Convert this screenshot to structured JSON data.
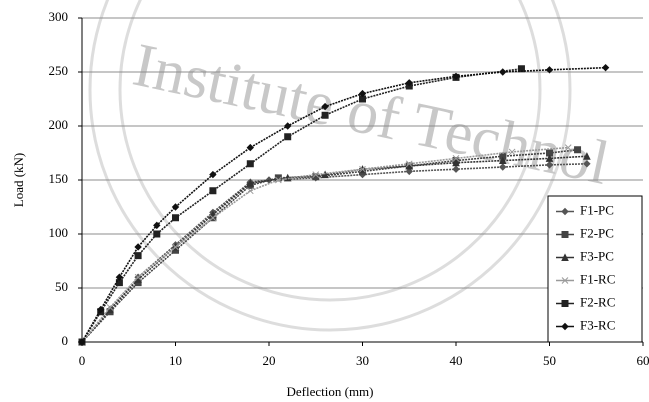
{
  "chart_data": {
    "type": "line",
    "watermark": "Institute of Technol",
    "xlabel": "Deflection (mm)",
    "ylabel": "Load (kN)",
    "xlim": [
      0,
      60
    ],
    "xticks": [
      0,
      10,
      20,
      30,
      40,
      50,
      60
    ],
    "ylim": [
      0,
      300
    ],
    "yticks": [
      0,
      50,
      100,
      150,
      200,
      250,
      300
    ],
    "grid": true,
    "legend": "lower right",
    "series": [
      {
        "name": "F1-PC",
        "color": "#555555",
        "marker": "diamond",
        "x": [
          0,
          3,
          6,
          10,
          14,
          18,
          20,
          25,
          30,
          35,
          40,
          45,
          50,
          54
        ],
        "values": [
          0,
          30,
          60,
          90,
          120,
          148,
          150,
          152,
          155,
          158,
          160,
          162,
          164,
          165
        ]
      },
      {
        "name": "F2-PC",
        "color": "#444444",
        "marker": "square",
        "x": [
          0,
          3,
          6,
          10,
          14,
          18,
          21,
          25,
          30,
          35,
          40,
          45,
          50,
          53
        ],
        "values": [
          0,
          28,
          55,
          85,
          115,
          145,
          152,
          153,
          158,
          163,
          168,
          172,
          175,
          178
        ]
      },
      {
        "name": "F3-PC",
        "color": "#333333",
        "marker": "triangle",
        "x": [
          0,
          3,
          6,
          10,
          14,
          18,
          22,
          26,
          30,
          35,
          40,
          45,
          50,
          54
        ],
        "values": [
          0,
          30,
          58,
          88,
          118,
          147,
          152,
          155,
          160,
          163,
          166,
          168,
          170,
          172
        ]
      },
      {
        "name": "F1-RC",
        "color": "#9a9a9a",
        "marker": "cross",
        "x": [
          0,
          3,
          6,
          10,
          14,
          18,
          21,
          25,
          30,
          35,
          40,
          46,
          52
        ],
        "values": [
          0,
          32,
          60,
          88,
          115,
          140,
          150,
          155,
          160,
          165,
          170,
          176,
          180
        ]
      },
      {
        "name": "F2-RC",
        "color": "#222222",
        "marker": "square",
        "x": [
          0,
          2,
          4,
          6,
          8,
          10,
          14,
          18,
          22,
          26,
          30,
          35,
          40,
          47
        ],
        "values": [
          0,
          28,
          55,
          80,
          100,
          115,
          140,
          165,
          190,
          210,
          225,
          237,
          245,
          253
        ]
      },
      {
        "name": "F3-RC",
        "color": "#111111",
        "marker": "diamond",
        "x": [
          0,
          2,
          4,
          6,
          8,
          10,
          14,
          18,
          22,
          26,
          30,
          35,
          40,
          45,
          50,
          56
        ],
        "values": [
          0,
          30,
          60,
          88,
          108,
          125,
          155,
          180,
          200,
          218,
          230,
          240,
          246,
          250,
          252,
          254
        ]
      }
    ]
  }
}
